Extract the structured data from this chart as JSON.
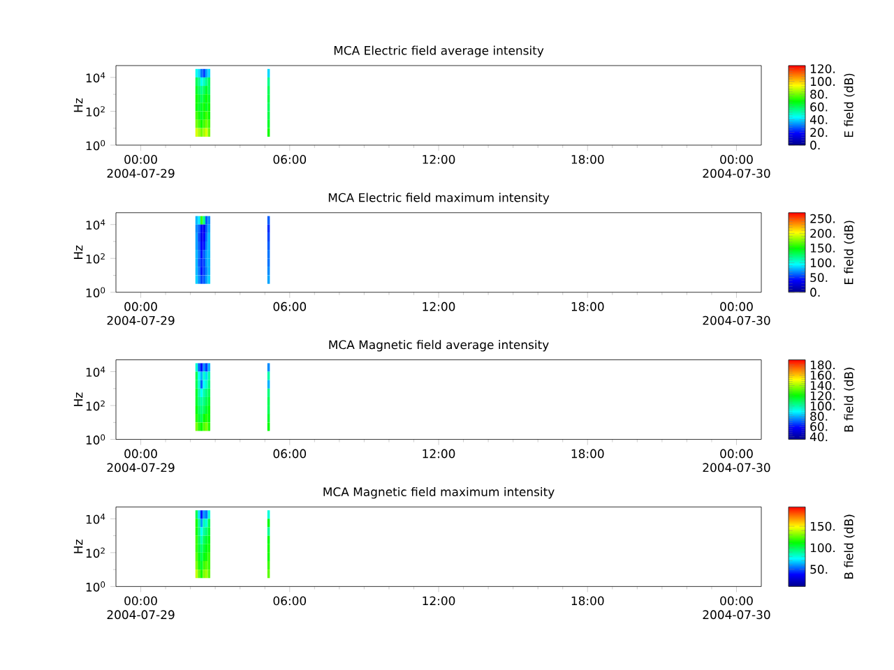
{
  "chart_data": [
    {
      "type": "heatmap",
      "title": "MCA  Electric field average intensity",
      "ylabel": "Hz",
      "clabel": "E field (dB)",
      "log": "y",
      "x": [
        2.25,
        2.35,
        2.45,
        2.55,
        2.65,
        2.75,
        2.85,
        2.95,
        3.05,
        3.15,
        3.25,
        3.35,
        3.45,
        3.55,
        3.65,
        3.75,
        3.85,
        3.95,
        4.05,
        4.15,
        4.25,
        4.35,
        4.45,
        4.55,
        4.65,
        4.75,
        4.85,
        4.95,
        5.05,
        5.15
      ],
      "y": [
        17783,
        5623,
        1778,
        562,
        178,
        56,
        18,
        5.6
      ],
      "cells": [
        [
          45,
          40,
          30,
          25,
          35,
          40,
          null,
          null,
          null,
          null,
          null,
          null,
          null,
          null,
          null,
          null,
          null,
          null,
          null,
          null,
          null,
          null,
          null,
          null,
          null,
          null,
          null,
          null,
          null,
          40
        ],
        [
          60,
          55,
          45,
          50,
          55,
          60,
          null,
          null,
          null,
          null,
          null,
          null,
          null,
          null,
          null,
          null,
          null,
          null,
          null,
          null,
          null,
          null,
          null,
          null,
          null,
          null,
          null,
          null,
          null,
          55
        ],
        [
          65,
          60,
          55,
          60,
          65,
          60,
          null,
          null,
          null,
          null,
          null,
          null,
          null,
          null,
          null,
          null,
          null,
          null,
          null,
          null,
          null,
          null,
          null,
          null,
          null,
          null,
          null,
          null,
          null,
          60
        ],
        [
          70,
          65,
          60,
          65,
          70,
          65,
          null,
          null,
          null,
          null,
          null,
          null,
          null,
          null,
          null,
          null,
          null,
          null,
          null,
          null,
          null,
          null,
          null,
          null,
          null,
          null,
          null,
          null,
          null,
          62
        ],
        [
          70,
          65,
          65,
          70,
          65,
          70,
          null,
          null,
          null,
          null,
          null,
          null,
          null,
          null,
          null,
          null,
          null,
          null,
          null,
          null,
          null,
          null,
          null,
          null,
          null,
          null,
          null,
          null,
          null,
          60
        ],
        [
          75,
          70,
          65,
          70,
          75,
          70,
          null,
          null,
          null,
          null,
          null,
          null,
          null,
          null,
          null,
          null,
          null,
          null,
          null,
          null,
          null,
          null,
          null,
          null,
          null,
          null,
          null,
          null,
          null,
          62
        ],
        [
          80,
          75,
          70,
          75,
          80,
          75,
          null,
          null,
          null,
          null,
          null,
          null,
          null,
          null,
          null,
          null,
          null,
          null,
          null,
          null,
          null,
          null,
          null,
          null,
          null,
          null,
          null,
          null,
          null,
          65
        ],
        [
          90,
          85,
          80,
          85,
          90,
          80,
          null,
          null,
          null,
          null,
          null,
          null,
          null,
          null,
          null,
          null,
          null,
          null,
          null,
          null,
          null,
          null,
          null,
          null,
          null,
          null,
          null,
          null,
          null,
          70
        ]
      ],
      "xlim": [
        -1,
        25
      ],
      "xticks": [
        {
          "value": 0,
          "label": "00:00 2004-07-29"
        },
        {
          "value": 6,
          "label": "06:00"
        },
        {
          "value": 12,
          "label": "12:00"
        },
        {
          "value": 18,
          "label": "18:00"
        },
        {
          "value": 24,
          "label": "00:00 2004-07-30"
        }
      ],
      "ylim": [
        1,
        50000
      ],
      "yticks": [
        {
          "value": 1,
          "label": "10$^{0}$"
        },
        {
          "value": 100,
          "label": "10$^{2}$"
        },
        {
          "value": 10000,
          "label": "10$^{4}$"
        }
      ],
      "clim": [
        0,
        125
      ],
      "cticks": [
        {
          "value": 0,
          "label": "0."
        },
        {
          "value": 20,
          "label": "20."
        },
        {
          "value": 40,
          "label": "40."
        },
        {
          "value": 60,
          "label": "60."
        },
        {
          "value": 80,
          "label": "80."
        },
        {
          "value": 100,
          "label": "100."
        },
        {
          "value": 120,
          "label": "120."
        }
      ]
    },
    {
      "type": "heatmap",
      "title": "MCA  Electric field maximum intensity",
      "ylabel": "Hz",
      "clabel": "E field (dB)",
      "log": "y",
      "x": [
        2.25,
        2.35,
        2.45,
        2.55,
        2.65,
        2.75,
        2.85,
        2.95,
        3.05,
        3.15,
        3.25,
        3.35,
        3.45,
        3.55,
        3.65,
        3.75,
        3.85,
        3.95,
        4.05,
        4.15,
        4.25,
        4.35,
        4.45,
        4.55,
        4.65,
        4.75,
        4.85,
        4.95,
        5.05,
        5.15
      ],
      "y": [
        17783,
        5623,
        1778,
        562,
        178,
        56,
        18,
        5.6
      ],
      "cells": [
        [
          80,
          90,
          160,
          120,
          60,
          70,
          null,
          null,
          null,
          null,
          null,
          null,
          null,
          null,
          null,
          null,
          null,
          null,
          null,
          null,
          null,
          null,
          null,
          null,
          null,
          null,
          null,
          null,
          null,
          60
        ],
        [
          70,
          60,
          40,
          35,
          60,
          75,
          null,
          null,
          null,
          null,
          null,
          null,
          null,
          null,
          null,
          null,
          null,
          null,
          null,
          null,
          null,
          null,
          null,
          null,
          null,
          null,
          null,
          null,
          null,
          50
        ],
        [
          75,
          55,
          35,
          40,
          65,
          80,
          null,
          null,
          null,
          null,
          null,
          null,
          null,
          null,
          null,
          null,
          null,
          null,
          null,
          null,
          null,
          null,
          null,
          null,
          null,
          null,
          null,
          null,
          null,
          55
        ],
        [
          75,
          60,
          40,
          45,
          70,
          80,
          null,
          null,
          null,
          null,
          null,
          null,
          null,
          null,
          null,
          null,
          null,
          null,
          null,
          null,
          null,
          null,
          null,
          null,
          null,
          null,
          null,
          null,
          null,
          60
        ],
        [
          80,
          65,
          45,
          60,
          75,
          80,
          null,
          null,
          null,
          null,
          null,
          null,
          null,
          null,
          null,
          null,
          null,
          null,
          null,
          null,
          null,
          null,
          null,
          null,
          null,
          null,
          null,
          null,
          null,
          65
        ],
        [
          80,
          60,
          50,
          55,
          75,
          80,
          null,
          null,
          null,
          null,
          null,
          null,
          null,
          null,
          null,
          null,
          null,
          null,
          null,
          null,
          null,
          null,
          null,
          null,
          null,
          null,
          null,
          null,
          null,
          65
        ],
        [
          80,
          65,
          45,
          55,
          70,
          80,
          null,
          null,
          null,
          null,
          null,
          null,
          null,
          null,
          null,
          null,
          null,
          null,
          null,
          null,
          null,
          null,
          null,
          null,
          null,
          null,
          null,
          null,
          null,
          70
        ],
        [
          85,
          70,
          55,
          60,
          75,
          85,
          null,
          null,
          null,
          null,
          null,
          null,
          null,
          null,
          null,
          null,
          null,
          null,
          null,
          null,
          null,
          null,
          null,
          null,
          null,
          null,
          null,
          null,
          null,
          75
        ]
      ],
      "xlim": [
        -1,
        25
      ],
      "xticks": [
        {
          "value": 0,
          "label": "00:00 2004-07-29"
        },
        {
          "value": 6,
          "label": "06:00"
        },
        {
          "value": 12,
          "label": "12:00"
        },
        {
          "value": 18,
          "label": "18:00"
        },
        {
          "value": 24,
          "label": "00:00 2004-07-30"
        }
      ],
      "ylim": [
        1,
        50000
      ],
      "yticks": [
        {
          "value": 1,
          "label": "10$^{0}$"
        },
        {
          "value": 100,
          "label": "10$^{2}$"
        },
        {
          "value": 10000,
          "label": "10$^{4}$"
        }
      ],
      "clim": [
        0,
        270
      ],
      "cticks": [
        {
          "value": 0,
          "label": "0."
        },
        {
          "value": 50,
          "label": "50."
        },
        {
          "value": 100,
          "label": "100."
        },
        {
          "value": 150,
          "label": "150."
        },
        {
          "value": 200,
          "label": "200."
        },
        {
          "value": 250,
          "label": "250."
        }
      ]
    },
    {
      "type": "heatmap",
      "title": "MCA  Magnetic field average intensity",
      "ylabel": "Hz",
      "clabel": "B field (dB)",
      "log": "y",
      "x": [
        2.25,
        2.35,
        2.45,
        2.55,
        2.65,
        2.75,
        2.85,
        2.95,
        3.05,
        3.15,
        3.25,
        3.35,
        3.45,
        3.55,
        3.65,
        3.75,
        3.85,
        3.95,
        4.05,
        4.15,
        4.25,
        4.35,
        4.45,
        4.55,
        4.65,
        4.75,
        4.85,
        4.95,
        5.05,
        5.15
      ],
      "y": [
        17783,
        5623,
        1778,
        562,
        178,
        56,
        18,
        5.6
      ],
      "cells": [
        [
          95,
          70,
          60,
          75,
          65,
          80,
          null,
          null,
          null,
          null,
          null,
          null,
          null,
          null,
          null,
          null,
          null,
          null,
          null,
          null,
          null,
          null,
          null,
          null,
          null,
          null,
          null,
          null,
          null,
          75
        ],
        [
          110,
          90,
          80,
          95,
          85,
          100,
          null,
          null,
          null,
          null,
          null,
          null,
          null,
          null,
          null,
          null,
          null,
          null,
          null,
          null,
          null,
          null,
          null,
          null,
          null,
          null,
          null,
          null,
          null,
          100
        ],
        [
          110,
          95,
          70,
          90,
          95,
          105,
          null,
          null,
          null,
          null,
          null,
          null,
          null,
          null,
          null,
          null,
          null,
          null,
          null,
          null,
          null,
          null,
          null,
          null,
          null,
          null,
          null,
          null,
          null,
          80
        ],
        [
          115,
          100,
          90,
          100,
          105,
          110,
          null,
          null,
          null,
          null,
          null,
          null,
          null,
          null,
          null,
          null,
          null,
          null,
          null,
          null,
          null,
          null,
          null,
          null,
          null,
          null,
          null,
          null,
          null,
          105
        ],
        [
          115,
          105,
          100,
          105,
          110,
          115,
          null,
          null,
          null,
          null,
          null,
          null,
          null,
          null,
          null,
          null,
          null,
          null,
          null,
          null,
          null,
          null,
          null,
          null,
          null,
          null,
          null,
          null,
          null,
          110
        ],
        [
          120,
          110,
          105,
          110,
          115,
          120,
          null,
          null,
          null,
          null,
          null,
          null,
          null,
          null,
          null,
          null,
          null,
          null,
          null,
          null,
          null,
          null,
          null,
          null,
          null,
          null,
          null,
          null,
          null,
          110
        ],
        [
          125,
          115,
          110,
          120,
          125,
          120,
          null,
          null,
          null,
          null,
          null,
          null,
          null,
          null,
          null,
          null,
          null,
          null,
          null,
          null,
          null,
          null,
          null,
          null,
          null,
          null,
          null,
          null,
          null,
          115
        ],
        [
          135,
          125,
          120,
          130,
          135,
          125,
          null,
          null,
          null,
          null,
          null,
          null,
          null,
          null,
          null,
          null,
          null,
          null,
          null,
          null,
          null,
          null,
          null,
          null,
          null,
          null,
          null,
          null,
          null,
          120
        ]
      ],
      "xlim": [
        -1,
        25
      ],
      "xticks": [
        {
          "value": 0,
          "label": "00:00 2004-07-29"
        },
        {
          "value": 6,
          "label": "06:00"
        },
        {
          "value": 12,
          "label": "12:00"
        },
        {
          "value": 18,
          "label": "18:00"
        },
        {
          "value": 24,
          "label": "00:00 2004-07-30"
        }
      ],
      "ylim": [
        1,
        50000
      ],
      "yticks": [
        {
          "value": 1,
          "label": "10$^{0}$"
        },
        {
          "value": 100,
          "label": "10$^{2}$"
        },
        {
          "value": 10000,
          "label": "10$^{4}$"
        }
      ],
      "clim": [
        35,
        190
      ],
      "cticks": [
        {
          "value": 40,
          "label": "40."
        },
        {
          "value": 60,
          "label": "60."
        },
        {
          "value": 80,
          "label": "80."
        },
        {
          "value": 100,
          "label": "100."
        },
        {
          "value": 120,
          "label": "120."
        },
        {
          "value": 140,
          "label": "140."
        },
        {
          "value": 160,
          "label": "160."
        },
        {
          "value": 180,
          "label": "180."
        }
      ]
    },
    {
      "type": "heatmap",
      "title": "MCA  Magnetic field maximum intensity",
      "ylabel": "Hz",
      "clabel": "B field (dB)",
      "log": "y",
      "x": [
        2.25,
        2.35,
        2.45,
        2.55,
        2.65,
        2.75,
        2.85,
        2.95,
        3.05,
        3.15,
        3.25,
        3.35,
        3.45,
        3.55,
        3.65,
        3.75,
        3.85,
        3.95,
        4.05,
        4.15,
        4.25,
        4.35,
        4.45,
        4.55,
        4.65,
        4.75,
        4.85,
        4.95,
        5.05,
        5.15
      ],
      "y": [
        17783,
        5623,
        1778,
        562,
        178,
        56,
        18,
        5.6
      ],
      "cells": [
        [
          100,
          70,
          40,
          60,
          55,
          80,
          null,
          null,
          null,
          null,
          null,
          null,
          null,
          null,
          null,
          null,
          null,
          null,
          null,
          null,
          null,
          null,
          null,
          null,
          null,
          null,
          null,
          null,
          null,
          80
        ],
        [
          115,
          90,
          60,
          85,
          80,
          100,
          null,
          null,
          null,
          null,
          null,
          null,
          null,
          null,
          null,
          null,
          null,
          null,
          null,
          null,
          null,
          null,
          null,
          null,
          null,
          null,
          null,
          null,
          null,
          110
        ],
        [
          115,
          95,
          75,
          90,
          95,
          105,
          null,
          null,
          null,
          null,
          null,
          null,
          null,
          null,
          null,
          null,
          null,
          null,
          null,
          null,
          null,
          null,
          null,
          null,
          null,
          null,
          null,
          null,
          null,
          90
        ],
        [
          120,
          100,
          85,
          100,
          105,
          110,
          null,
          null,
          null,
          null,
          null,
          null,
          null,
          null,
          null,
          null,
          null,
          null,
          null,
          null,
          null,
          null,
          null,
          null,
          null,
          null,
          null,
          null,
          null,
          110
        ],
        [
          120,
          105,
          95,
          105,
          110,
          115,
          null,
          null,
          null,
          null,
          null,
          null,
          null,
          null,
          null,
          null,
          null,
          null,
          null,
          null,
          null,
          null,
          null,
          null,
          null,
          null,
          null,
          null,
          null,
          115
        ],
        [
          125,
          110,
          100,
          110,
          115,
          120,
          null,
          null,
          null,
          null,
          null,
          null,
          null,
          null,
          null,
          null,
          null,
          null,
          null,
          null,
          null,
          null,
          null,
          null,
          null,
          null,
          null,
          null,
          null,
          115
        ],
        [
          130,
          115,
          105,
          120,
          125,
          120,
          null,
          null,
          null,
          null,
          null,
          null,
          null,
          null,
          null,
          null,
          null,
          null,
          null,
          null,
          null,
          null,
          null,
          null,
          null,
          null,
          null,
          null,
          null,
          120
        ],
        [
          140,
          125,
          115,
          130,
          135,
          125,
          null,
          null,
          null,
          null,
          null,
          null,
          null,
          null,
          null,
          null,
          null,
          null,
          null,
          null,
          null,
          null,
          null,
          null,
          null,
          null,
          null,
          null,
          null,
          125
        ]
      ],
      "xlim": [
        -1,
        25
      ],
      "xticks": [
        {
          "value": 0,
          "label": "00:00 2004-07-29"
        },
        {
          "value": 6,
          "label": "06:00"
        },
        {
          "value": 12,
          "label": "12:00"
        },
        {
          "value": 18,
          "label": "18:00"
        },
        {
          "value": 24,
          "label": "00:00 2004-07-30"
        }
      ],
      "ylim": [
        1,
        50000
      ],
      "yticks": [
        {
          "value": 1,
          "label": "10$^{0}$"
        },
        {
          "value": 100,
          "label": "10$^{2}$"
        },
        {
          "value": 10000,
          "label": "10$^{4}$"
        }
      ],
      "clim": [
        10,
        195
      ],
      "cticks": [
        {
          "value": 50,
          "label": "50."
        },
        {
          "value": 100,
          "label": "100."
        },
        {
          "value": 150,
          "label": "150."
        }
      ]
    }
  ]
}
